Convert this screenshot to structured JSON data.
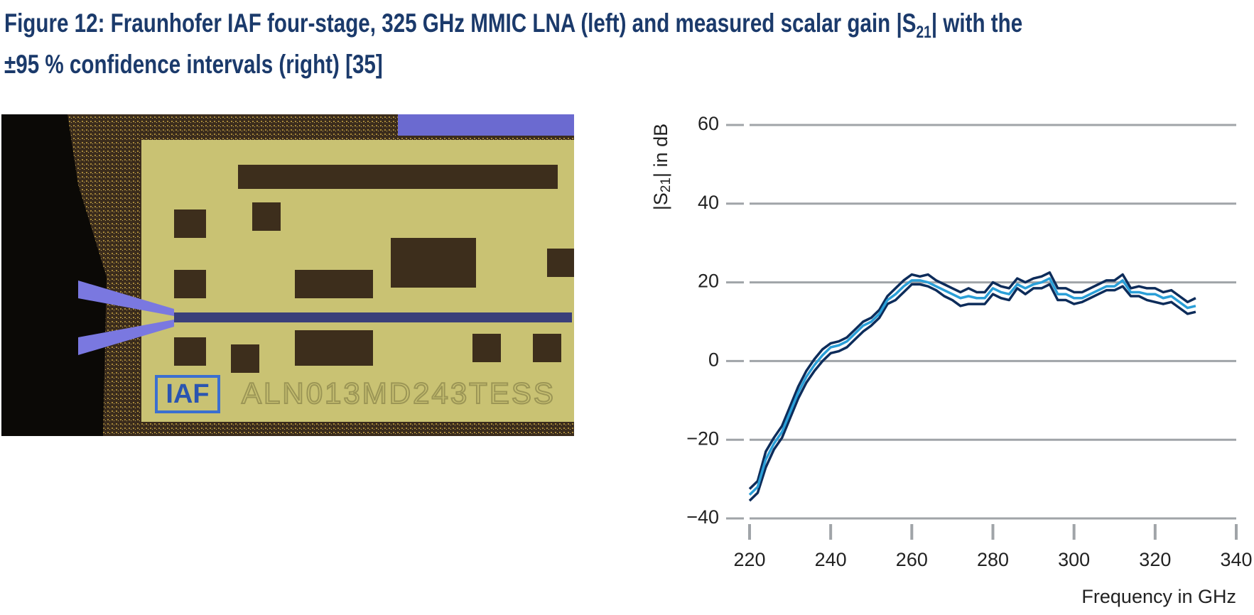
{
  "caption": {
    "line1": {
      "before": "Figure 12: Fraunhofer IAF four-stage, 325 GHz MMIC LNA (left) and measured scalar gain |S",
      "sub": "21",
      "after": "| with the"
    },
    "line2": "±95 % confidence intervals (right) [35]"
  },
  "photo_text": [
    "IAF",
    "ALN013MD243TESS"
  ],
  "chart_data": {
    "type": "line",
    "y_label": {
      "before": "|S",
      "sub": "21",
      "after": "| in dB"
    },
    "x_label": "Frequency in GHz",
    "x": [
      220,
      222,
      224,
      226,
      228,
      230,
      232,
      234,
      236,
      238,
      240,
      242,
      244,
      246,
      248,
      250,
      252,
      254,
      256,
      258,
      260,
      262,
      264,
      266,
      268,
      270,
      272,
      274,
      276,
      278,
      280,
      282,
      284,
      286,
      288,
      290,
      292,
      294,
      296,
      298,
      300,
      302,
      304,
      306,
      308,
      310,
      312,
      314,
      316,
      318,
      320,
      322,
      324,
      326,
      328,
      330
    ],
    "series": [
      {
        "color": "#0d2c5a",
        "values": [
          -32.5,
          -30.5,
          -23,
          -19.5,
          -16.5,
          -11.5,
          -6.5,
          -2.5,
          0.5,
          3,
          4.5,
          5,
          6,
          8,
          10,
          11,
          13,
          16.5,
          18.5,
          20.5,
          22,
          21.5,
          22,
          20.5,
          19.5,
          18.5,
          17.5,
          18.5,
          17.5,
          17.5,
          20,
          19,
          18.5,
          21,
          20,
          21,
          21.5,
          22.5,
          18.5,
          18.5,
          17.5,
          17.5,
          18.5,
          19.5,
          20.5,
          20.5,
          22,
          18.5,
          19,
          18.5,
          18.5,
          17.5,
          18,
          16.5,
          15,
          16
        ]
      },
      {
        "color": "#2a9fd8",
        "values": [
          -34,
          -32,
          -25,
          -21,
          -18,
          -13,
          -8,
          -4,
          -1,
          1.5,
          3.5,
          4,
          5,
          7,
          9,
          10,
          12,
          15.5,
          17,
          19,
          20.5,
          20.5,
          20,
          19,
          18,
          17,
          16,
          16.5,
          16,
          16,
          18.5,
          17.5,
          17,
          19.5,
          18.5,
          19.5,
          20,
          21,
          17,
          17,
          16,
          16,
          17,
          18,
          19,
          19,
          20.5,
          17.5,
          17.5,
          17,
          17,
          16,
          16.5,
          15,
          13.5,
          14
        ]
      },
      {
        "color": "#0d2c5a",
        "values": [
          -35.5,
          -33.5,
          -27,
          -22.5,
          -19.5,
          -14.5,
          -9.5,
          -5.5,
          -2.5,
          0,
          2,
          2.5,
          3.5,
          5.5,
          7.5,
          9,
          11,
          14.5,
          15.5,
          17.5,
          19.5,
          19.5,
          19,
          18,
          16.5,
          15.5,
          14,
          14.5,
          14.5,
          14.5,
          17,
          16,
          15.5,
          18.5,
          17,
          18.5,
          18.5,
          19.5,
          15.5,
          15.5,
          14.5,
          15,
          16,
          17,
          18,
          18,
          19,
          16.5,
          16.5,
          15.5,
          15,
          14.5,
          15,
          13.5,
          12,
          12.5
        ]
      }
    ],
    "xlim": [
      220,
      340
    ],
    "xticks": [
      220,
      240,
      260,
      280,
      300,
      320,
      340
    ],
    "ylim": [
      -40,
      60
    ],
    "yticks": [
      {
        "value": -40,
        "label": "−40"
      },
      {
        "value": -20,
        "label": "−20"
      },
      0,
      20,
      40,
      60
    ],
    "grid": true
  }
}
